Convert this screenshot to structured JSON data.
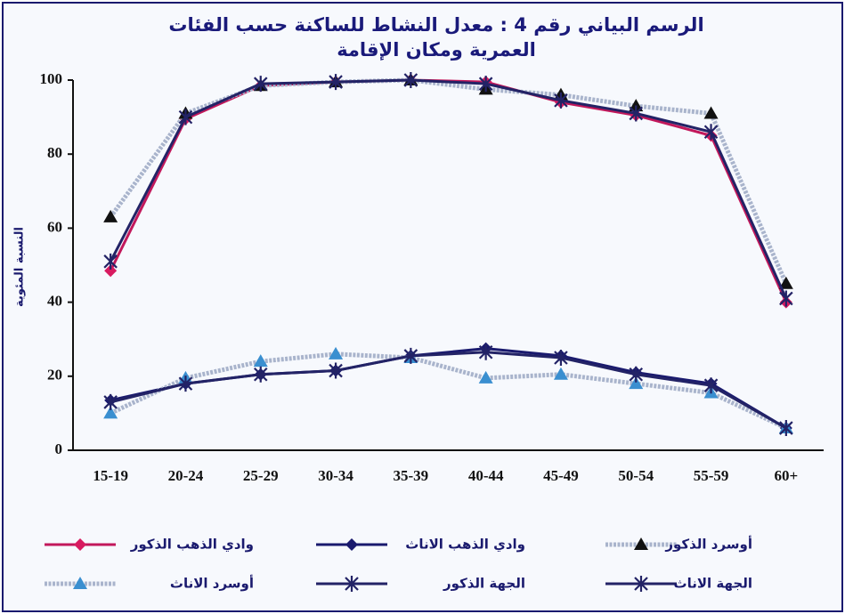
{
  "chart_data": {
    "type": "line",
    "title": "الرسم البياني رقم 4 : معدل النشاط للساكنة حسب الفئات العمرية ومكان الإقامة",
    "ylabel": "النسبة المئوية",
    "categories": [
      "15-19",
      "20-24",
      "25-29",
      "30-34",
      "35-39",
      "40-44",
      "45-49",
      "50-54",
      "55-59",
      "60+"
    ],
    "ylim": [
      0,
      100
    ],
    "yticks": [
      0,
      20,
      40,
      60,
      80,
      100
    ],
    "series": [
      {
        "name": "وادي الذهب الذكور",
        "color": "#c2185b",
        "marker": "diamond",
        "marker_color": "#d81b60",
        "values": [
          48.5,
          89.5,
          98.5,
          99.5,
          100,
          99.5,
          94,
          90.5,
          85,
          40
        ]
      },
      {
        "name": "وادي الذهب الاناث",
        "color": "#1a1a6e",
        "marker": "diamond",
        "marker_color": "#1a1a6e",
        "values": [
          13.5,
          18,
          20.5,
          21.5,
          25.5,
          27.5,
          25.5,
          21,
          18,
          6
        ]
      },
      {
        "name": "أوسرد الذكور",
        "color": "#a9b4cc",
        "marker": "triangle",
        "marker_color": "#111111",
        "values": [
          63,
          91,
          98.5,
          99.5,
          100,
          97.5,
          96,
          93,
          91,
          45
        ]
      },
      {
        "name": "أوسرد الاناث",
        "color": "#a9b4cc",
        "marker": "triangle",
        "marker_color": "#3a8fd0",
        "values": [
          10,
          19.5,
          24,
          26,
          25,
          19.5,
          20.5,
          18,
          15.5,
          6
        ]
      },
      {
        "name": "الجهة الذكور",
        "color": "#232366",
        "marker": "star",
        "marker_color": "#232366",
        "values": [
          51,
          90,
          99,
          99.5,
          100,
          99,
          94.5,
          91,
          86,
          41
        ]
      },
      {
        "name": "الجهة الاناث",
        "color": "#232366",
        "marker": "star",
        "marker_color": "#232366",
        "values": [
          13,
          18,
          20.5,
          21.5,
          25.5,
          26.5,
          25,
          20.5,
          17.5,
          6
        ]
      }
    ]
  }
}
